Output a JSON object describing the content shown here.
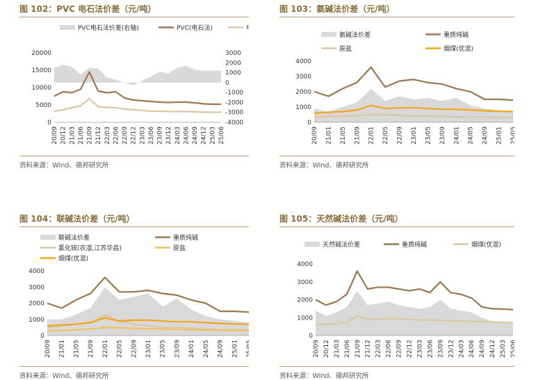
{
  "colors": {
    "gray_area": "#d9d9d9",
    "brown": "#9c7650",
    "tan": "#dcc7a3",
    "orange": "#f2a516",
    "title": "#8a6d3b",
    "rule": "#b89b72"
  },
  "charts": [
    {
      "panel_title": "图 102：PVC 电石法价差（元/吨）",
      "source": "资料来源：Wind、德邦研究所",
      "chart_data": {
        "type": "line",
        "legend": [
          "PVC电石法价差(右轴)",
          "PVC(电石法)",
          "电石"
        ],
        "x_ticks": [
          "20/09",
          "20/12",
          "21/03",
          "21/06",
          "21/09",
          "21/12",
          "22/03",
          "22/06",
          "22/09",
          "22/12",
          "23/03",
          "23/06",
          "23/09",
          "23/12",
          "24/03",
          "24/06",
          "24/09",
          "24/12",
          "25/03",
          "25/06"
        ],
        "y_left": {
          "ticks": [
            "0",
            "5000",
            "10000",
            "15000",
            "20000"
          ],
          "ylim": [
            0,
            20000
          ]
        },
        "y_right": {
          "ticks": [
            "-4000",
            "-3000",
            "-2000",
            "-1000",
            "0",
            "1000",
            "2000",
            "3000"
          ],
          "ylim": [
            -4000,
            3000
          ]
        },
        "series": [
          {
            "name": "PVC电石法价差(右轴)",
            "style": "area",
            "axis": "right",
            "color": "#d9d9d9",
            "values": [
              1500,
              1800,
              1600,
              800,
              1500,
              1400,
              500,
              300,
              0,
              -300,
              200,
              600,
              1100,
              900,
              1500,
              1700,
              1300,
              1200,
              1200,
              1200
            ]
          },
          {
            "name": "PVC(电石法)",
            "style": "line",
            "axis": "left",
            "color": "#9c7650",
            "values": [
              7500,
              8800,
              8500,
              9500,
              14500,
              9000,
              8500,
              8800,
              7000,
              6400,
              6200,
              6000,
              5800,
              5700,
              5800,
              5800,
              5600,
              5300,
              5200,
              5200
            ]
          },
          {
            "name": "电石",
            "style": "line",
            "axis": "left",
            "color": "#dcc7a3",
            "values": [
              3200,
              3600,
              4200,
              4700,
              6800,
              4500,
              4300,
              4200,
              3800,
              3600,
              3400,
              3200,
              3200,
              3100,
              3100,
              3100,
              3000,
              2900,
              2900,
              2900
            ]
          }
        ]
      }
    },
    {
      "panel_title": "图 103：氨碱法价差（元/吨）",
      "source": "资料来源：Wind、德邦研究所",
      "chart_data": {
        "type": "line",
        "legend": [
          "氨碱法价差",
          "重质纯碱",
          "原盐",
          "烟煤(优混)"
        ],
        "x_ticks": [
          "20/09",
          "21/01",
          "21/05",
          "21/09",
          "22/01",
          "22/05",
          "22/09",
          "23/01",
          "23/05",
          "23/09",
          "24/01",
          "24/05",
          "24/09",
          "25/01",
          "25/05"
        ],
        "y_left": {
          "ticks": [
            "0",
            "1000",
            "2000",
            "3000",
            "4000"
          ],
          "ylim": [
            0,
            4000
          ]
        },
        "series": [
          {
            "name": "氨碱法价差",
            "style": "area",
            "axis": "left",
            "color": "#d9d9d9",
            "values": [
              900,
              700,
              1000,
              1300,
              2200,
              1400,
              1700,
              1500,
              1600,
              1400,
              1600,
              1100,
              900,
              800,
              700
            ]
          },
          {
            "name": "重质纯碱",
            "style": "line",
            "axis": "left",
            "color": "#9c7650",
            "values": [
              2000,
              1700,
              2200,
              2600,
              3600,
              2300,
              2700,
              2800,
              2600,
              2500,
              2200,
              2000,
              1500,
              1500,
              1450
            ]
          },
          {
            "name": "原盐",
            "style": "line",
            "axis": "left",
            "color": "#dcc7a3",
            "values": [
              350,
              380,
              400,
              430,
              500,
              480,
              450,
              420,
              400,
              380,
              360,
              350,
              330,
              320,
              300
            ]
          },
          {
            "name": "烟煤(优混)",
            "style": "line",
            "axis": "left",
            "color": "#f2a516",
            "values": [
              600,
              650,
              700,
              800,
              1100,
              900,
              950,
              950,
              900,
              850,
              850,
              800,
              750,
              720,
              700
            ]
          }
        ]
      }
    },
    {
      "panel_title": "图 104：联碱法价差（元/吨）",
      "source": "资料来源：Wind、德邦研究所",
      "chart_data": {
        "type": "line",
        "legend": [
          "联碱法价差",
          "重质纯碱",
          "氯化铵(农湿,江苏华昌)",
          "原盐",
          "烟煤(优混)"
        ],
        "x_ticks": [
          "20/09",
          "21/01",
          "21/05",
          "21/09",
          "22/01",
          "22/05",
          "22/09",
          "23/01",
          "23/05",
          "23/09",
          "24/01",
          "24/05",
          "24/09",
          "25/01",
          "25/05"
        ],
        "y_left": {
          "ticks": [
            "0",
            "1000",
            "2000",
            "3000",
            "4000"
          ],
          "ylim": [
            0,
            4000
          ]
        },
        "series": [
          {
            "name": "联碱法价差",
            "style": "area",
            "axis": "left",
            "color": "#d9d9d9",
            "values": [
              1000,
              1000,
              1300,
              1700,
              3000,
              2200,
              2400,
              2600,
              1800,
              2300,
              1600,
              1200,
              1000,
              900,
              800
            ]
          },
          {
            "name": "重质纯碱",
            "style": "line",
            "axis": "left",
            "color": "#9c7650",
            "values": [
              2000,
              1700,
              2200,
              2600,
              3600,
              2700,
              2700,
              2800,
              2600,
              2500,
              2200,
              2000,
              1500,
              1500,
              1450
            ]
          },
          {
            "name": "氯化铵(农湿,江苏华昌)",
            "style": "line",
            "axis": "left",
            "color": "#dcc7a3",
            "values": [
              500,
              600,
              700,
              800,
              1300,
              900,
              700,
              600,
              500,
              500,
              450,
              400,
              350,
              350,
              350
            ]
          },
          {
            "name": "原盐",
            "style": "line",
            "axis": "left",
            "color": "#f2c060",
            "values": [
              300,
              320,
              350,
              400,
              500,
              480,
              450,
              420,
              400,
              380,
              360,
              350,
              330,
              320,
              300
            ]
          },
          {
            "name": "烟煤(优混)",
            "style": "line",
            "axis": "left",
            "color": "#f2a516",
            "values": [
              600,
              650,
              700,
              800,
              1100,
              900,
              950,
              950,
              900,
              850,
              850,
              800,
              750,
              720,
              700
            ]
          }
        ]
      }
    },
    {
      "panel_title": "图 105：天然碱法价差（元/吨）",
      "source": "资料来源：Wind、德邦研究所",
      "chart_data": {
        "type": "line",
        "legend": [
          "天然碱法价差",
          "重质纯碱",
          "烟煤(优混)"
        ],
        "x_ticks": [
          "20/09",
          "20/12",
          "21/03",
          "21/06",
          "21/09",
          "21/12",
          "22/03",
          "22/06",
          "22/09",
          "22/12",
          "23/03",
          "23/06",
          "23/09",
          "23/12",
          "24/03",
          "24/06",
          "24/09",
          "24/12",
          "25/03",
          "25/06"
        ],
        "y_left": {
          "ticks": [
            "0",
            "1000",
            "2000",
            "3000",
            "4000"
          ],
          "ylim": [
            0,
            4000
          ]
        },
        "series": [
          {
            "name": "天然碱法价差",
            "style": "area",
            "axis": "left",
            "color": "#d9d9d9",
            "values": [
              1400,
              1100,
              1300,
              1600,
              2500,
              1700,
              1800,
              1900,
              1700,
              1600,
              1500,
              1600,
              2000,
              1500,
              1400,
              1300,
              1000,
              800,
              750,
              700
            ]
          },
          {
            "name": "重质纯碱",
            "style": "line",
            "axis": "left",
            "color": "#9c7650",
            "values": [
              2000,
              1700,
              1900,
              2300,
              3600,
              2600,
              2700,
              2700,
              2600,
              2500,
              2600,
              2400,
              3000,
              2400,
              2300,
              2100,
              1600,
              1500,
              1480,
              1450
            ]
          },
          {
            "name": "烟煤(优混)",
            "style": "line",
            "axis": "left",
            "color": "#dcc7a3",
            "values": [
              600,
              620,
              650,
              750,
              1100,
              900,
              920,
              950,
              930,
              900,
              880,
              860,
              850,
              830,
              820,
              800,
              780,
              760,
              740,
              720
            ]
          }
        ]
      }
    }
  ]
}
